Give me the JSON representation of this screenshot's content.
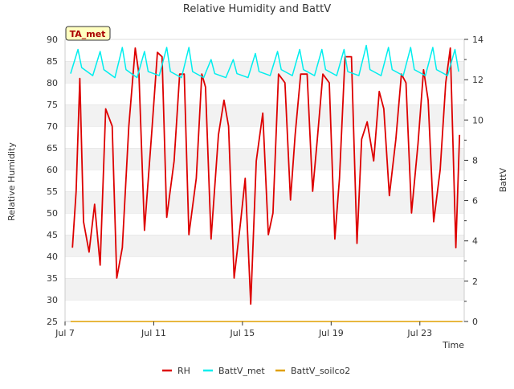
{
  "chart_data": {
    "type": "line",
    "title": "Relative Humidity and BattV",
    "xlabel": "Time",
    "ylabel": "Relative Humidity",
    "y2label": "BattV",
    "annotation": "TA_met",
    "x_range": [
      "2023-07-07",
      "2023-07-25"
    ],
    "x_ticks": [
      {
        "date": "2023-07-07",
        "label": "Jul 7"
      },
      {
        "date": "2023-07-11",
        "label": "Jul 11"
      },
      {
        "date": "2023-07-15",
        "label": "Jul 15"
      },
      {
        "date": "2023-07-19",
        "label": "Jul 19"
      },
      {
        "date": "2023-07-23",
        "label": "Jul 23"
      }
    ],
    "ylim": [
      25,
      90
    ],
    "y_ticks": [
      25,
      30,
      35,
      40,
      45,
      50,
      55,
      60,
      65,
      70,
      75,
      80,
      85,
      90
    ],
    "y2lim": [
      0,
      14
    ],
    "y2_ticks": [
      0,
      2,
      4,
      6,
      8,
      10,
      12,
      14
    ],
    "grid": true,
    "legend_position": "bottom",
    "series": [
      {
        "name": "RH",
        "color": "#dd0000",
        "axis": "left",
        "x": [
          "2023-07-07 08:00",
          "2023-07-07 12:00",
          "2023-07-07 16:00",
          "2023-07-07 20:00",
          "2023-07-08 02:00",
          "2023-07-08 08:00",
          "2023-07-08 14:00",
          "2023-07-08 20:00",
          "2023-07-09 03:00",
          "2023-07-09 08:00",
          "2023-07-09 14:00",
          "2023-07-09 21:00",
          "2023-07-10 04:00",
          "2023-07-10 08:00",
          "2023-07-10 14:00",
          "2023-07-10 22:00",
          "2023-07-11 04:00",
          "2023-07-11 09:00",
          "2023-07-11 14:00",
          "2023-07-11 22:00",
          "2023-07-12 04:00",
          "2023-07-12 09:00",
          "2023-07-12 14:00",
          "2023-07-12 22:00",
          "2023-07-13 04:00",
          "2023-07-13 08:00",
          "2023-07-13 14:00",
          "2023-07-13 22:00",
          "2023-07-14 04:00",
          "2023-07-14 09:00",
          "2023-07-14 15:00",
          "2023-07-14 22:00",
          "2023-07-15 03:00",
          "2023-07-15 09:00",
          "2023-07-15 15:00",
          "2023-07-15 22:00",
          "2023-07-16 04:00",
          "2023-07-16 09:00",
          "2023-07-16 15:00",
          "2023-07-16 22:00",
          "2023-07-17 04:00",
          "2023-07-17 09:00",
          "2023-07-17 15:00",
          "2023-07-17 22:00",
          "2023-07-18 04:00",
          "2023-07-18 09:00",
          "2023-07-18 15:00",
          "2023-07-18 22:00",
          "2023-07-19 04:00",
          "2023-07-19 09:00",
          "2023-07-19 15:00",
          "2023-07-19 22:00",
          "2023-07-20 04:00",
          "2023-07-20 09:00",
          "2023-07-20 15:00",
          "2023-07-20 22:00",
          "2023-07-21 04:00",
          "2023-07-21 09:00",
          "2023-07-21 15:00",
          "2023-07-21 22:00",
          "2023-07-22 04:00",
          "2023-07-22 09:00",
          "2023-07-22 15:00",
          "2023-07-22 22:00",
          "2023-07-23 04:00",
          "2023-07-23 09:00",
          "2023-07-23 15:00",
          "2023-07-23 22:00",
          "2023-07-24 04:00",
          "2023-07-24 09:00",
          "2023-07-24 15:00",
          "2023-07-24 19:00"
        ],
        "values": [
          42,
          55,
          81,
          48,
          41,
          52,
          38,
          74,
          70,
          35,
          42,
          70,
          88,
          82,
          46,
          69,
          87,
          86,
          49,
          62,
          82,
          82,
          45,
          58,
          82,
          79,
          44,
          68,
          76,
          70,
          35,
          48,
          58,
          29,
          62,
          73,
          45,
          50,
          82,
          80,
          53,
          68,
          82,
          82,
          55,
          67,
          82,
          80,
          44,
          58,
          86,
          86,
          43,
          67,
          71,
          62,
          78,
          74,
          54,
          67,
          82,
          80,
          50,
          66,
          83,
          76,
          48,
          60,
          80,
          88,
          42,
          68
        ]
      },
      {
        "name": "BattV_met",
        "color": "#00eeee",
        "axis": "right",
        "x": [
          "2023-07-07 06:00",
          "2023-07-07 14:00",
          "2023-07-07 18:00",
          "2023-07-08 06:00",
          "2023-07-08 14:00",
          "2023-07-08 18:00",
          "2023-07-09 06:00",
          "2023-07-09 14:00",
          "2023-07-09 18:00",
          "2023-07-10 06:00",
          "2023-07-10 14:00",
          "2023-07-10 18:00",
          "2023-07-11 06:00",
          "2023-07-11 14:00",
          "2023-07-11 18:00",
          "2023-07-12 06:00",
          "2023-07-12 14:00",
          "2023-07-12 18:00",
          "2023-07-13 06:00",
          "2023-07-13 14:00",
          "2023-07-13 18:00",
          "2023-07-14 06:00",
          "2023-07-14 14:00",
          "2023-07-14 18:00",
          "2023-07-15 06:00",
          "2023-07-15 14:00",
          "2023-07-15 18:00",
          "2023-07-16 06:00",
          "2023-07-16 14:00",
          "2023-07-16 18:00",
          "2023-07-17 06:00",
          "2023-07-17 14:00",
          "2023-07-17 18:00",
          "2023-07-18 06:00",
          "2023-07-18 14:00",
          "2023-07-18 18:00",
          "2023-07-19 06:00",
          "2023-07-19 14:00",
          "2023-07-19 18:00",
          "2023-07-20 06:00",
          "2023-07-20 14:00",
          "2023-07-20 18:00",
          "2023-07-21 06:00",
          "2023-07-21 14:00",
          "2023-07-21 18:00",
          "2023-07-22 06:00",
          "2023-07-22 14:00",
          "2023-07-22 18:00",
          "2023-07-23 06:00",
          "2023-07-23 14:00",
          "2023-07-23 18:00",
          "2023-07-24 06:00",
          "2023-07-24 14:00",
          "2023-07-24 18:00"
        ],
        "values": [
          12.3,
          13.5,
          12.6,
          12.2,
          13.4,
          12.5,
          12.1,
          13.6,
          12.5,
          12.1,
          13.4,
          12.4,
          12.2,
          13.6,
          12.4,
          12.1,
          13.6,
          12.4,
          12.1,
          13.0,
          12.3,
          12.1,
          13.0,
          12.3,
          12.1,
          13.3,
          12.4,
          12.2,
          13.4,
          12.5,
          12.2,
          13.5,
          12.5,
          12.2,
          13.5,
          12.5,
          12.2,
          13.5,
          12.4,
          12.2,
          13.7,
          12.5,
          12.2,
          13.6,
          12.5,
          12.2,
          13.6,
          12.5,
          12.2,
          13.6,
          12.5,
          12.2,
          13.5,
          12.4
        ]
      },
      {
        "name": "BattV_soilco2",
        "color": "#e0a000",
        "axis": "right",
        "x": [
          "2023-07-07 06:00",
          "2023-07-24 22:00"
        ],
        "values": [
          0,
          0
        ]
      }
    ]
  }
}
